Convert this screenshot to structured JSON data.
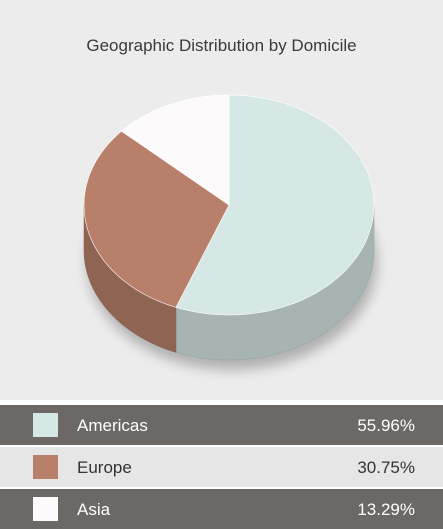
{
  "chart_data": {
    "type": "pie3d",
    "title": "Geographic Distribution by Domicile",
    "categories": [
      "Americas",
      "Europe",
      "Asia"
    ],
    "values": [
      55.96,
      30.75,
      13.29
    ],
    "value_labels": [
      "55.96%",
      "30.75%",
      "13.29%"
    ],
    "colors": [
      "#d5e8e6",
      "#b8806a",
      "#fdfafb"
    ]
  }
}
